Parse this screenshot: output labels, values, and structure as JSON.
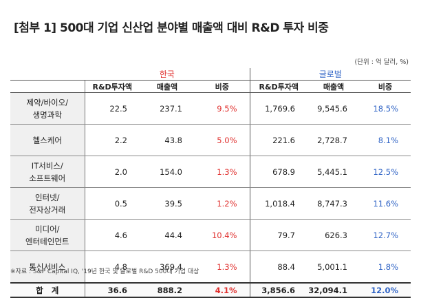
{
  "title": "[첨부 1] 500대 기업 신산업 분야별 매출액 대비 R&D 투자 비중",
  "unit": "(단위 : 억 달러, %)",
  "groups": {
    "korea": "한국",
    "global": "글로벌"
  },
  "headers": {
    "rd": "R&D투자액",
    "sales": "매출액",
    "ratio": "비중"
  },
  "rows": [
    {
      "category_line1": "제약/바이오/",
      "category_line2": "생명과학",
      "kr_rd": "22.5",
      "kr_sales": "237.1",
      "kr_ratio": "9.5%",
      "gl_rd": "1,769.6",
      "gl_sales": "9,545.6",
      "gl_ratio": "18.5%"
    },
    {
      "category_line1": "헬스케어",
      "category_line2": "",
      "kr_rd": "2.2",
      "kr_sales": "43.8",
      "kr_ratio": "5.0%",
      "gl_rd": "221.6",
      "gl_sales": "2,728.7",
      "gl_ratio": "8.1%"
    },
    {
      "category_line1": "IT서비스/",
      "category_line2": "소프트웨어",
      "kr_rd": "2.0",
      "kr_sales": "154.0",
      "kr_ratio": "1.3%",
      "gl_rd": "678.9",
      "gl_sales": "5,445.1",
      "gl_ratio": "12.5%"
    },
    {
      "category_line1": "인터넷/",
      "category_line2": "전자상거래",
      "kr_rd": "0.5",
      "kr_sales": "39.5",
      "kr_ratio": "1.2%",
      "gl_rd": "1,018.4",
      "gl_sales": "8,747.3",
      "gl_ratio": "11.6%"
    },
    {
      "category_line1": "미디어/",
      "category_line2": "엔터테인먼트",
      "kr_rd": "4.6",
      "kr_sales": "44.4",
      "kr_ratio": "10.4%",
      "gl_rd": "79.7",
      "gl_sales": "626.3",
      "gl_ratio": "12.7%"
    },
    {
      "category_line1": "통신서비스",
      "category_line2": "",
      "kr_rd": "4.8",
      "kr_sales": "369.4",
      "kr_ratio": "1.3%",
      "gl_rd": "88.4",
      "gl_sales": "5,001.1",
      "gl_ratio": "1.8%"
    }
  ],
  "total": {
    "label": "합계",
    "kr_rd": "36.6",
    "kr_sales": "888.2",
    "kr_ratio": "4.1%",
    "gl_rd": "3,856.6",
    "gl_sales": "32,094.1",
    "gl_ratio": "12.0%"
  },
  "source": "※자료 : S&P Capital IQ, '19년 한국 및 글로벌 R&D 500대 기업 대상",
  "colors": {
    "korea": "#e0302e",
    "global": "#2f63c5",
    "category_bg": "#f0f0f0"
  }
}
